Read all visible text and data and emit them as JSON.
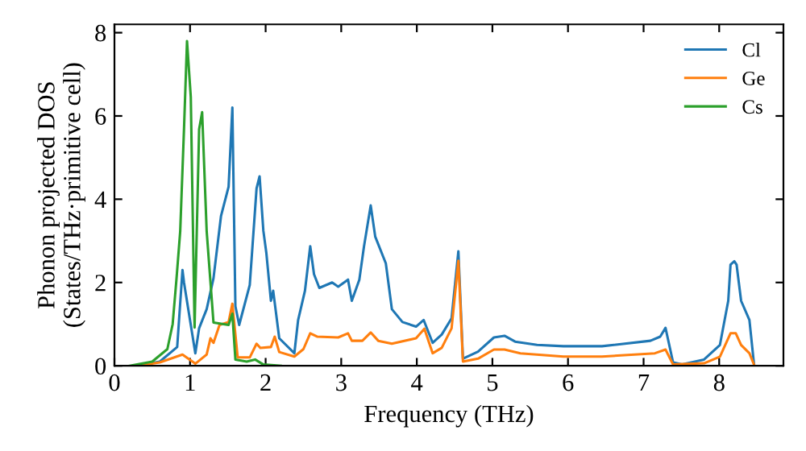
{
  "chart_data": {
    "type": "line",
    "xlabel": "Frequency (THz)",
    "ylabel": "Phonon projected DOS\n(States/THz·primitive cell)",
    "xlim": [
      0,
      8.85
    ],
    "ylim": [
      0,
      8.2
    ],
    "xticks": [
      0,
      1,
      2,
      3,
      4,
      5,
      6,
      7,
      8
    ],
    "yticks": [
      0,
      2,
      4,
      6,
      8
    ],
    "legend": "top right",
    "grid": false,
    "series": [
      {
        "name": "Cl",
        "color": "#1f77b4",
        "x": [
          0.3,
          0.6,
          0.83,
          0.9,
          0.92,
          1.07,
          1.12,
          1.22,
          1.31,
          1.41,
          1.51,
          1.56,
          1.6,
          1.65,
          1.79,
          1.88,
          1.92,
          1.97,
          2.01,
          2.07,
          2.1,
          2.18,
          2.38,
          2.43,
          2.52,
          2.59,
          2.64,
          2.71,
          2.88,
          2.96,
          3.09,
          3.14,
          3.24,
          3.3,
          3.39,
          3.45,
          3.59,
          3.67,
          3.81,
          3.99,
          4.09,
          4.21,
          4.33,
          4.46,
          4.55,
          4.61,
          4.81,
          5.02,
          5.16,
          5.3,
          5.59,
          5.94,
          6.45,
          7.09,
          7.22,
          7.29,
          7.39,
          7.51,
          7.8,
          8.01,
          8.12,
          8.15,
          8.2,
          8.23,
          8.29,
          8.4,
          8.46
        ],
        "values": [
          0.0,
          0.1,
          0.45,
          2.3,
          2.0,
          0.3,
          0.9,
          1.36,
          2.1,
          3.6,
          4.3,
          6.2,
          1.43,
          0.98,
          1.94,
          4.26,
          4.55,
          3.24,
          2.7,
          1.56,
          1.8,
          0.66,
          0.3,
          1.1,
          1.8,
          2.87,
          2.2,
          1.87,
          2.0,
          1.9,
          2.07,
          1.56,
          2.07,
          2.85,
          3.85,
          3.1,
          2.46,
          1.36,
          1.05,
          0.94,
          1.1,
          0.55,
          0.75,
          1.14,
          2.75,
          0.17,
          0.34,
          0.68,
          0.72,
          0.58,
          0.5,
          0.47,
          0.47,
          0.6,
          0.7,
          0.91,
          0.08,
          0.03,
          0.15,
          0.5,
          1.56,
          2.43,
          2.51,
          2.43,
          1.56,
          1.1,
          0.05
        ]
      },
      {
        "name": "Ge",
        "color": "#ff7f0e",
        "x": [
          0.3,
          0.6,
          0.9,
          1.07,
          1.22,
          1.27,
          1.31,
          1.39,
          1.51,
          1.56,
          1.63,
          1.79,
          1.88,
          1.93,
          2.07,
          2.12,
          2.18,
          2.38,
          2.5,
          2.59,
          2.68,
          2.96,
          3.09,
          3.14,
          3.28,
          3.39,
          3.49,
          3.67,
          3.99,
          4.1,
          4.21,
          4.33,
          4.46,
          4.55,
          4.61,
          4.81,
          5.02,
          5.16,
          5.37,
          5.94,
          6.45,
          7.15,
          7.29,
          7.39,
          7.8,
          8.01,
          8.15,
          8.22,
          8.29,
          8.4,
          8.46
        ],
        "values": [
          0.0,
          0.08,
          0.27,
          0.05,
          0.27,
          0.66,
          0.55,
          0.98,
          1.05,
          1.49,
          0.2,
          0.2,
          0.53,
          0.43,
          0.45,
          0.7,
          0.33,
          0.22,
          0.4,
          0.78,
          0.7,
          0.68,
          0.78,
          0.6,
          0.6,
          0.8,
          0.6,
          0.53,
          0.66,
          0.89,
          0.3,
          0.43,
          0.9,
          2.52,
          0.1,
          0.17,
          0.39,
          0.39,
          0.3,
          0.22,
          0.22,
          0.3,
          0.39,
          0.03,
          0.06,
          0.22,
          0.78,
          0.78,
          0.5,
          0.3,
          0.03
        ]
      },
      {
        "name": "Cs",
        "color": "#2ca02c",
        "x": [
          0.2,
          0.5,
          0.7,
          0.77,
          0.82,
          0.87,
          0.92,
          0.96,
          1.01,
          1.06,
          1.12,
          1.16,
          1.22,
          1.31,
          1.51,
          1.56,
          1.6,
          1.75,
          1.86,
          1.97,
          2.2
        ],
        "values": [
          0.0,
          0.1,
          0.4,
          1.0,
          2.07,
          3.23,
          5.68,
          7.8,
          6.45,
          0.92,
          5.68,
          6.09,
          3.23,
          1.04,
          0.98,
          1.25,
          0.15,
          0.1,
          0.15,
          0.03,
          0.0
        ]
      }
    ]
  }
}
